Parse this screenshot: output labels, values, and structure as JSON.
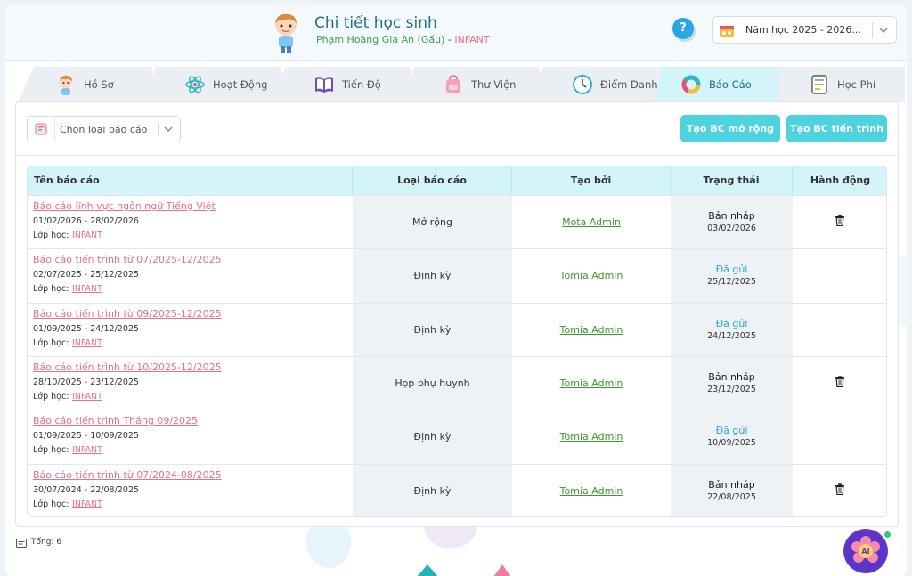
{
  "header": {
    "title": "Chi tiết học sinh",
    "student_name": "Phạm Hoàng Gia An (Gấu)",
    "separator": " - ",
    "class_name": "INFANT",
    "help_label": "?",
    "school_year": "Năm học 2025 - 2026..."
  },
  "tabs": [
    {
      "label": "Hồ Sơ",
      "icon": "boy-avatar-icon"
    },
    {
      "label": "Hoạt Động",
      "icon": "atom-icon"
    },
    {
      "label": "Tiến Độ",
      "icon": "book-icon"
    },
    {
      "label": "Thư Viện",
      "icon": "backpack-icon"
    },
    {
      "label": "Điểm Danh",
      "icon": "clock-icon"
    },
    {
      "label": "Báo Cáo",
      "icon": "donut-chart-icon",
      "active": true
    },
    {
      "label": "Học Phí",
      "icon": "invoice-icon"
    }
  ],
  "toolbar": {
    "type_placeholder": "Chọn loại báo cáo",
    "btn_extended": "Tạo BC mở rộng",
    "btn_progress": "Tạo BC tiến trình"
  },
  "table": {
    "headers": [
      "Tên báo cáo",
      "Loại báo cáo",
      "Tạo bởi",
      "Trạng thái",
      "Hành động"
    ],
    "class_label": "Lớp học:",
    "rows": [
      {
        "title": "Báo cáo lĩnh vực ngôn ngữ Tiếng Việt",
        "date_range": "01/02/2026 - 28/02/2026",
        "class": "INFANT",
        "type": "Mở rộng",
        "created_by": "Mota Admin",
        "status": "Bản nháp",
        "status_kind": "draft",
        "status_date": "03/02/2026",
        "deletable": true
      },
      {
        "title": "Báo cáo tiến trình từ 07/2025-12/2025",
        "date_range": "02/07/2025 - 25/12/2025",
        "class": "INFANT",
        "type": "Định kỳ",
        "created_by": "Tomia Admin",
        "status": "Đã gửi",
        "status_kind": "sent",
        "status_date": "25/12/2025",
        "deletable": false
      },
      {
        "title": "Báo cáo tiến trình từ 09/2025-12/2025",
        "date_range": "01/09/2025 - 24/12/2025",
        "class": "INFANT",
        "type": "Định kỳ",
        "created_by": "Tomia Admin",
        "status": "Đã gửi",
        "status_kind": "sent",
        "status_date": "24/12/2025",
        "deletable": false
      },
      {
        "title": "Báo cáo tiến trình từ 10/2025-12/2025",
        "date_range": "28/10/2025 - 23/12/2025",
        "class": "INFANT",
        "type": "Họp phụ huynh",
        "created_by": "Tomia Admin",
        "status": "Bản nháp",
        "status_kind": "draft",
        "status_date": "23/12/2025",
        "deletable": true
      },
      {
        "title": "Báo cáo tiến trình Tháng 09/2025",
        "date_range": "01/09/2025 - 10/09/2025",
        "class": "INFANT",
        "type": "Định kỳ",
        "created_by": "Tomia Admin",
        "status": "Đã gửi",
        "status_kind": "sent",
        "status_date": "10/09/2025",
        "deletable": false
      },
      {
        "title": "Báo cáo tiến trình từ 07/2024-08/2025",
        "date_range": "30/07/2024 - 22/08/2025",
        "class": "INFANT",
        "type": "Định kỳ",
        "created_by": "Tomia Admin",
        "status": "Bản nháp",
        "status_kind": "draft",
        "status_date": "22/08/2025",
        "deletable": true
      }
    ]
  },
  "footer": {
    "total": "Tổng: 6"
  },
  "ai_button": {
    "label": "AI"
  },
  "colors": {
    "accent": "#4dd3e0",
    "header_bg": "#d3f5fa",
    "link_pink": "#e96f8a",
    "link_green": "#3a9a2d",
    "status_sent": "#2aa6e0",
    "title_blue": "#1f6f8b"
  }
}
